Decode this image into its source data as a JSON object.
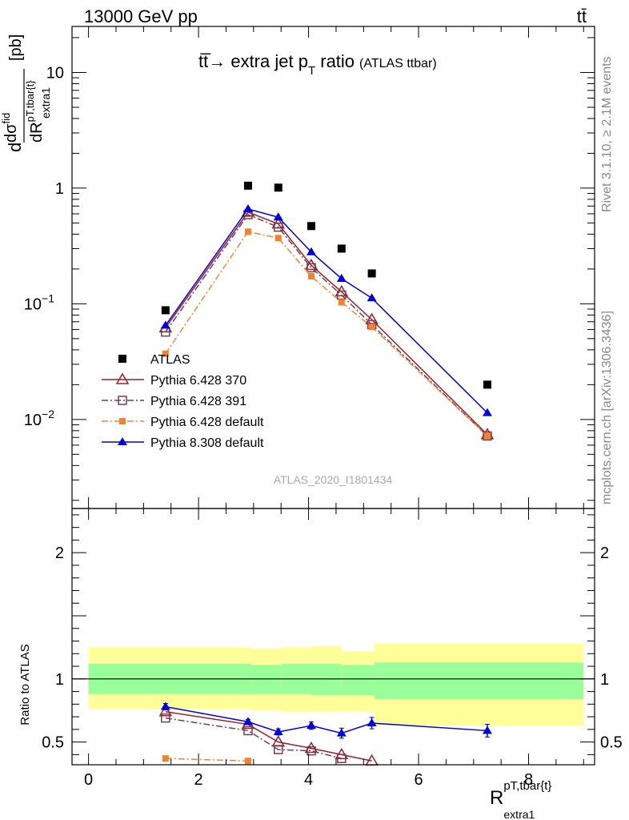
{
  "header": {
    "energy_label": "13000 GeV pp",
    "process_label": "tt̄"
  },
  "title": {
    "main": "tt̅→ extra jet p",
    "sub": "T",
    "rest": " ratio",
    "tag": "(ATLAS ttbar)"
  },
  "side": {
    "rivet": "Rivet 3.1.10, ≥ 2.1M events",
    "mcplots": "mcplots.cern.ch [arXiv:1306.3436]"
  },
  "analysis_label": "ATLAS_2020_I1801434",
  "axes": {
    "ylabel_top": {
      "d": "d",
      "sigma": "dσ",
      "sup": "fid",
      "dR": "dR",
      "sub1": "pT,tbar{t}",
      "sub2": "extra1",
      "unit": "[pb]"
    },
    "ylabel_ratio": "Ratio to ATLAS",
    "xlabel": {
      "main": "R",
      "sup": "pT,tbar{t}",
      "sub": "extra1"
    },
    "x_ticks": [
      "0",
      "2",
      "4",
      "6",
      "8"
    ],
    "y_ticks_top": [
      {
        "base": "10",
        "exp": "−2"
      },
      {
        "base": "10",
        "exp": "−1"
      },
      {
        "base": "1",
        "exp": ""
      },
      {
        "base": "10",
        "exp": ""
      }
    ],
    "y_ticks_ratio": [
      "0.5",
      "1",
      "2"
    ]
  },
  "chart_data": {
    "type": "scatter",
    "x_range": [
      -0.3,
      9.2
    ],
    "y_top_range": [
      0.0017,
      25
    ],
    "y_top_scale": "log",
    "y_ratio_range": [
      0.32,
      2.35
    ],
    "legend_position": "bottom-left",
    "x": [
      1.4,
      2.9,
      3.45,
      4.05,
      4.6,
      5.15,
      7.25
    ],
    "band_edges": [
      0,
      2.95,
      3.5,
      4.05,
      4.6,
      5.2,
      9.0
    ],
    "band_green": [
      [
        0.88,
        1.12
      ],
      [
        0.88,
        1.11
      ],
      [
        0.88,
        1.12
      ],
      [
        0.87,
        1.12
      ],
      [
        0.87,
        1.11
      ],
      [
        0.84,
        1.13
      ],
      [
        0.87,
        1.12
      ]
    ],
    "band_yellow": [
      [
        0.76,
        1.25
      ],
      [
        0.75,
        1.24
      ],
      [
        0.74,
        1.25
      ],
      [
        0.74,
        1.26
      ],
      [
        0.74,
        1.22
      ],
      [
        0.63,
        1.28
      ],
      [
        0.71,
        1.28
      ]
    ],
    "series": [
      {
        "name": "ATLAS",
        "color": "#000000",
        "marker": "square-filled",
        "line": "none",
        "values": [
          0.088,
          1.05,
          1.01,
          0.47,
          0.3,
          0.183,
          0.02
        ],
        "ratio": [
          1,
          1,
          1,
          1,
          1,
          1,
          1
        ]
      },
      {
        "name": "Pythia 6.428 370",
        "color": "#9a1f2e",
        "marker": "triangle-open",
        "line": "solid",
        "values": [
          0.062,
          0.62,
          0.49,
          0.215,
          0.127,
          0.073,
          0.0074
        ],
        "ratio": [
          0.74,
          0.64,
          0.5,
          0.45,
          0.4,
          0.35,
          null
        ]
      },
      {
        "name": "Pythia 6.428 391",
        "color": "#7a3b4e",
        "marker": "square-open",
        "line": "dashdot",
        "values": [
          0.057,
          0.59,
          0.46,
          0.205,
          0.119,
          0.066,
          0.0072
        ],
        "ratio": [
          0.69,
          0.59,
          0.44,
          0.43,
          0.37,
          null,
          null
        ]
      },
      {
        "name": "Pythia 6.428 default",
        "color": "#f5822b",
        "marker": "square-filled-small",
        "line": "dashdot",
        "values": [
          0.037,
          0.42,
          0.37,
          0.173,
          0.103,
          0.063,
          0.0072
        ],
        "ratio": [
          0.37,
          0.35,
          null,
          null,
          null,
          null,
          null
        ]
      },
      {
        "name": "Pythia 8.308 default",
        "color": "#0000dd",
        "marker": "triangle-filled",
        "line": "solid",
        "values": [
          0.065,
          0.66,
          0.56,
          0.28,
          0.165,
          0.112,
          0.0114
        ],
        "ratio": [
          0.78,
          0.66,
          0.58,
          0.63,
          0.57,
          0.65,
          0.59
        ],
        "ratio_err": [
          0.025,
          0.02,
          0.025,
          0.03,
          0.04,
          0.045,
          0.05
        ]
      }
    ]
  }
}
